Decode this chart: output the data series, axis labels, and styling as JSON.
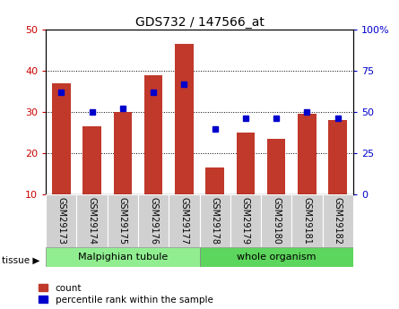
{
  "title": "GDS732 / 147566_at",
  "samples": [
    "GSM29173",
    "GSM29174",
    "GSM29175",
    "GSM29176",
    "GSM29177",
    "GSM29178",
    "GSM29179",
    "GSM29180",
    "GSM29181",
    "GSM29182"
  ],
  "count_values": [
    37,
    26.5,
    30,
    39,
    46.5,
    16.5,
    25,
    23.5,
    29.5,
    28
  ],
  "percentile_values_right": [
    62,
    50,
    52,
    62,
    67,
    40,
    46,
    46,
    50,
    46
  ],
  "bar_color_count": "#c0392b",
  "bar_color_percentile": "#0000cc",
  "tissue_groups": [
    {
      "label": "Malpighian tubule",
      "start": 0,
      "end": 5,
      "color": "#90ee90"
    },
    {
      "label": "whole organism",
      "start": 5,
      "end": 10,
      "color": "#5cd65c"
    }
  ],
  "ylim_left": [
    10,
    50
  ],
  "ylim_right": [
    0,
    100
  ],
  "yticks_left": [
    10,
    20,
    30,
    40,
    50
  ],
  "yticks_right": [
    0,
    25,
    50,
    75,
    100
  ],
  "yticklabels_right": [
    "0",
    "25",
    "50",
    "75",
    "100%"
  ],
  "bar_width": 0.6,
  "plot_bg_color": "#ffffff",
  "tick_label_color_left": "#cc0000",
  "tick_label_color_right": "#0000cc",
  "legend_count_label": "count",
  "legend_percentile_label": "percentile rank within the sample",
  "grid_dotted_at": [
    20,
    30,
    40
  ]
}
